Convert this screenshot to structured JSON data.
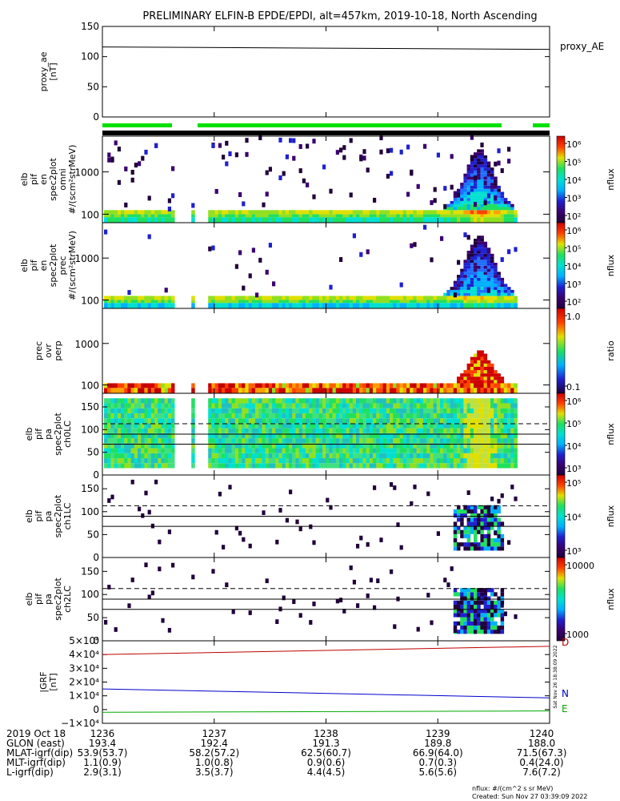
{
  "title": "PRELIMINARY ELFIN-B EPDE/EPDI, alt=457km, 2019-10-18, North Ascending",
  "panels": [
    {
      "id": "proxy_ae",
      "ylabel": [
        "proxy_ae",
        "[nT]"
      ],
      "yticks": [
        "150",
        "100",
        "50",
        "0"
      ],
      "legend": "proxy_AE"
    },
    {
      "id": "omni",
      "ylabel": [
        "elb",
        "pif",
        "en",
        "spec2plot",
        "omni",
        "#/(scm²strMeV)"
      ],
      "yticks": [
        "1000",
        "100"
      ],
      "zlabel": "nflux",
      "zticks": [
        "10⁶",
        "10⁵",
        "10⁴",
        "10³",
        "10²"
      ]
    },
    {
      "id": "prec",
      "ylabel": [
        "elb",
        "pif",
        "en",
        "spec2plot",
        "prec",
        "#/(scm²strMeV)"
      ],
      "yticks": [
        "1000",
        "100"
      ],
      "zlabel": "nflux",
      "zticks": [
        "10⁶",
        "10⁵",
        "10⁴",
        "10³",
        "10²"
      ]
    },
    {
      "id": "ratio",
      "ylabel": [
        "prec",
        "ovr",
        "perp"
      ],
      "yticks": [
        "1000",
        "100"
      ],
      "zlabel": "ratio",
      "zticks": [
        "1.0",
        "0.1"
      ]
    },
    {
      "id": "pa0",
      "ylabel": [
        "elb",
        "pif",
        "pa",
        "spec2plot",
        "ch0LC"
      ],
      "yticks": [
        "150",
        "100",
        "50",
        "0"
      ],
      "zlabel": "nflux",
      "zticks": [
        "10⁶",
        "10⁵",
        "10⁴",
        "10³"
      ]
    },
    {
      "id": "pa1",
      "ylabel": [
        "elb",
        "pif",
        "pa",
        "spec2plot",
        "ch1LC"
      ],
      "yticks": [
        "150",
        "100",
        "50",
        "0"
      ],
      "zlabel": "nflux",
      "zticks": [
        "10⁵",
        "10⁴",
        "10³"
      ]
    },
    {
      "id": "pa2",
      "ylabel": [
        "elb",
        "pif",
        "pa",
        "spec2plot",
        "ch2LC"
      ],
      "yticks": [
        "150",
        "100",
        "50",
        "0"
      ],
      "zlabel": "nflux",
      "zticks": [
        "10000",
        "1000"
      ]
    },
    {
      "id": "igrf",
      "ylabel": [
        "|GRF",
        "[nT]"
      ],
      "yticks": [
        "5×10⁴",
        "4×10⁴",
        "3×10⁴",
        "2×10⁴",
        "1×10⁴",
        "0",
        "−1×10⁴"
      ],
      "legend": [
        "D",
        "N",
        "E"
      ]
    }
  ],
  "chart_data": {
    "type": "heatmap",
    "time_axis": {
      "date": "2019 Oct 18",
      "ticks": [
        "1236",
        "1237",
        "1238",
        "1239",
        "1240"
      ]
    },
    "proxy_ae": {
      "series": "proxy_AE",
      "start": 116,
      "end": 112,
      "ylim": [
        0,
        150
      ]
    },
    "energy_axis": {
      "scale": "log",
      "ylim": [
        63,
        7000
      ],
      "ticks": [
        100,
        1000
      ]
    },
    "pitch_angle_axis": {
      "ylim": [
        0,
        180
      ],
      "ticks": [
        0,
        50,
        100,
        150
      ],
      "solid_lines": [
        90,
        68
      ],
      "dashed_line": 113
    },
    "igrf": {
      "ylim": [
        -10000,
        50000
      ],
      "series": [
        {
          "name": "D",
          "color": "#c00000",
          "start": 40000,
          "end": 46000
        },
        {
          "name": "N",
          "color": "#0000cc",
          "start": 15000,
          "end": 8500
        },
        {
          "name": "E",
          "color": "#00aa00",
          "start": -2000,
          "end": -1000
        }
      ]
    },
    "ephemeris": {
      "rows": [
        {
          "label": "2019 Oct 18",
          "values": [
            "1236",
            "1237",
            "1238",
            "1239",
            "1240"
          ]
        },
        {
          "label": "GLON (east)",
          "values": [
            "193.4",
            "192.4",
            "191.3",
            "189.8",
            "188.0"
          ]
        },
        {
          "label": "MLAT-igrf(dip)",
          "values": [
            "53.9(53.7)",
            "58.2(57.2)",
            "62.5(60.7)",
            "66.9(64.0)",
            "71.5(67.3)"
          ]
        },
        {
          "label": "MLT-igrf(dip)",
          "values": [
            "1.1(0.9)",
            "1.0(0.8)",
            "0.9(0.6)",
            "0.7(0.3)",
            "0.4(24.0)"
          ]
        },
        {
          "label": "L-igrf(dip)",
          "values": [
            "2.9(3.1)",
            "3.5(3.7)",
            "4.4(4.5)",
            "5.6(5.6)",
            "7.6(7.2)"
          ]
        }
      ]
    },
    "colors": {
      "green_bar": "#00e000",
      "black_bar": "#000000",
      "dashed": "#000000"
    }
  },
  "footer": {
    "units": "nflux: #/(cm^2 s sr MeV)",
    "created": "Created: Sun Nov 27 03:39:09 2022"
  },
  "sidestamp": "Sat Nov 26 18:38:09 2022"
}
